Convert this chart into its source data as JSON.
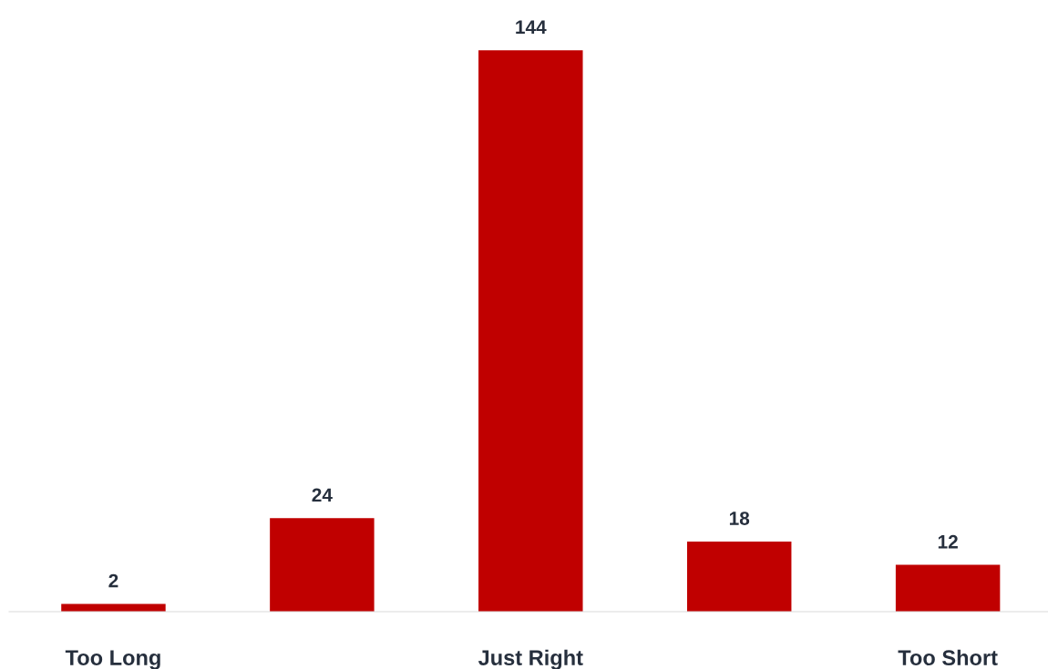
{
  "chart_data": {
    "type": "bar",
    "categories": [
      "Too Long",
      null,
      "Just Right",
      null,
      "Too Short"
    ],
    "values": [
      2,
      24,
      144,
      18,
      12
    ],
    "color": "#c00000",
    "data_labels": true,
    "grid": false,
    "legend": false
  }
}
